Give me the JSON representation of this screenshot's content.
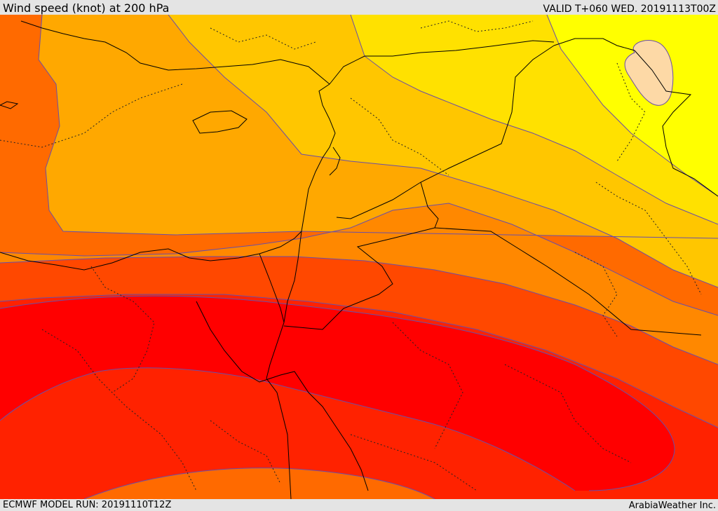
{
  "header": {
    "title": "Wind speed (knot) at 200 hPa",
    "valid": "VALID T+060 WED. 20191113T00Z"
  },
  "footer": {
    "model_run": "ECMWF MODEL RUN: 20191110T12Z",
    "credit": "ArabiaWeather Inc."
  },
  "map": {
    "field": "Wind speed at 200 hPa",
    "units": "knot",
    "colors": {
      "pale_peach": "#fdd9a6",
      "bright_yellow": "#ffff00",
      "yellow": "#ffe100",
      "golden": "#ffc600",
      "orange_light": "#ffa800",
      "orange": "#ff8800",
      "orange_deep": "#ff6a00",
      "red_orange": "#ff4800",
      "red_bright": "#ff2200",
      "red": "#ff0000",
      "contour_line": "#6a4ea8",
      "border_line": "#000000"
    }
  }
}
